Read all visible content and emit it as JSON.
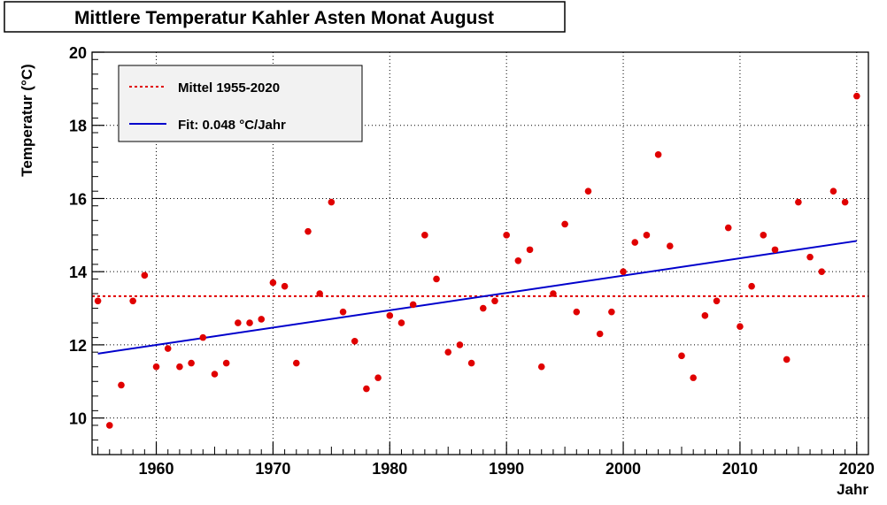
{
  "chart_data": {
    "type": "scatter",
    "title": "Mittlere Temperatur Kahler Asten Monat August",
    "xlabel": "Jahr",
    "ylabel": "Temperatur (°C)",
    "xlim": [
      1954.5,
      2021
    ],
    "ylim": [
      9,
      20
    ],
    "xticks": [
      1960,
      1970,
      1980,
      1990,
      2000,
      2010,
      2020
    ],
    "yticks": [
      10,
      12,
      14,
      16,
      18,
      20
    ],
    "grid": true,
    "legend_position": "top-left",
    "series": [
      {
        "name": "",
        "kind": "points",
        "color": "#e00000",
        "x": [
          1955,
          1956,
          1957,
          1958,
          1959,
          1960,
          1961,
          1962,
          1963,
          1964,
          1965,
          1966,
          1967,
          1968,
          1969,
          1970,
          1971,
          1972,
          1973,
          1974,
          1975,
          1976,
          1977,
          1978,
          1979,
          1980,
          1981,
          1982,
          1983,
          1984,
          1985,
          1986,
          1987,
          1988,
          1989,
          1990,
          1991,
          1992,
          1993,
          1994,
          1995,
          1996,
          1997,
          1998,
          1999,
          2000,
          2001,
          2002,
          2003,
          2004,
          2005,
          2006,
          2007,
          2008,
          2009,
          2010,
          2011,
          2012,
          2013,
          2014,
          2015,
          2016,
          2017,
          2018,
          2019,
          2020
        ],
        "y": [
          13.2,
          9.8,
          10.9,
          13.2,
          13.9,
          11.4,
          11.9,
          11.4,
          11.5,
          12.2,
          11.2,
          11.5,
          12.6,
          12.6,
          12.7,
          13.7,
          13.6,
          11.5,
          15.1,
          13.4,
          15.9,
          12.9,
          12.1,
          10.8,
          11.1,
          12.8,
          12.6,
          13.1,
          15.0,
          13.8,
          11.8,
          12.0,
          11.5,
          13.0,
          13.2,
          15.0,
          14.3,
          14.6,
          11.4,
          13.4,
          15.3,
          12.9,
          16.2,
          12.3,
          12.9,
          14.0,
          14.8,
          15.0,
          17.2,
          14.7,
          11.7,
          11.1,
          12.8,
          13.2,
          15.2,
          12.5,
          13.6,
          15.0,
          14.6,
          11.6,
          15.9,
          14.4,
          14.0,
          16.2,
          15.9,
          18.8
        ]
      },
      {
        "name": "Mittel 1955-2020",
        "kind": "hline",
        "color": "#e00000",
        "dash": true,
        "value": 13.33
      },
      {
        "name": "Fit: 0.048 °C/Jahr",
        "kind": "line",
        "color": "#0000cc",
        "x": [
          1955,
          2020
        ],
        "y": [
          11.76,
          14.84
        ]
      }
    ]
  }
}
